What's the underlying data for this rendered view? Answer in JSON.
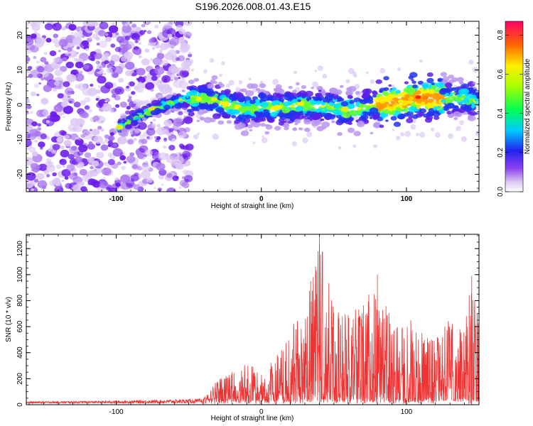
{
  "title": "S196.2026.008.01.43.E15",
  "chart_data": [
    {
      "type": "heatmap",
      "xlabel": "Height of straight line (km)",
      "ylabel": "Frequency (Hz)",
      "xlim": [
        -162,
        150
      ],
      "ylim": [
        -25,
        24
      ],
      "xticks": [
        "-100",
        "0",
        "100"
      ],
      "yticks": [
        "-20",
        "-10",
        "0",
        "10",
        "20"
      ],
      "ridge": {
        "x": [
          -98,
          -90,
          -80,
          -70,
          -60,
          -50,
          -40,
          -30,
          -20,
          -10,
          0,
          10,
          20,
          30,
          40,
          50,
          60,
          70,
          80,
          90,
          100,
          110,
          120,
          130,
          140,
          150
        ],
        "y": [
          -6.5,
          -4.5,
          -2.5,
          -0.5,
          1.0,
          1.5,
          2.0,
          1.0,
          -0.5,
          -1.5,
          -0.5,
          -1.0,
          -0.5,
          0.0,
          -0.5,
          -1.0,
          -1.5,
          -1.0,
          0.0,
          0.5,
          1.5,
          2.0,
          2.0,
          2.0,
          2.0,
          0.5
        ]
      },
      "colorbar": {
        "label": "Normalized spectral amplitude",
        "range": [
          0.0,
          0.87
        ],
        "ticks": [
          "0.0",
          "0.2",
          "0.4",
          "0.6",
          "0.8"
        ]
      }
    },
    {
      "type": "line",
      "xlabel": "Height of straight line (km)",
      "ylabel": "SNR (10 * v/v)",
      "xlim": [
        -162,
        150
      ],
      "ylim": [
        0,
        1310
      ],
      "xticks": [
        "-100",
        "0",
        "100"
      ],
      "yticks": [
        "0",
        "200",
        "400",
        "600",
        "800",
        "1000",
        "1200"
      ],
      "color": "#ee3333",
      "envelope": {
        "x": [
          -162,
          -100,
          -40,
          -30,
          -20,
          -10,
          0,
          10,
          20,
          30,
          40,
          50,
          60,
          70,
          80,
          90,
          100,
          110,
          120,
          130,
          140,
          145,
          150
        ],
        "y": [
          25,
          30,
          45,
          200,
          260,
          330,
          250,
          380,
          620,
          780,
          1310,
          820,
          720,
          760,
          1000,
          650,
          700,
          600,
          560,
          680,
          620,
          990,
          650
        ]
      }
    }
  ]
}
